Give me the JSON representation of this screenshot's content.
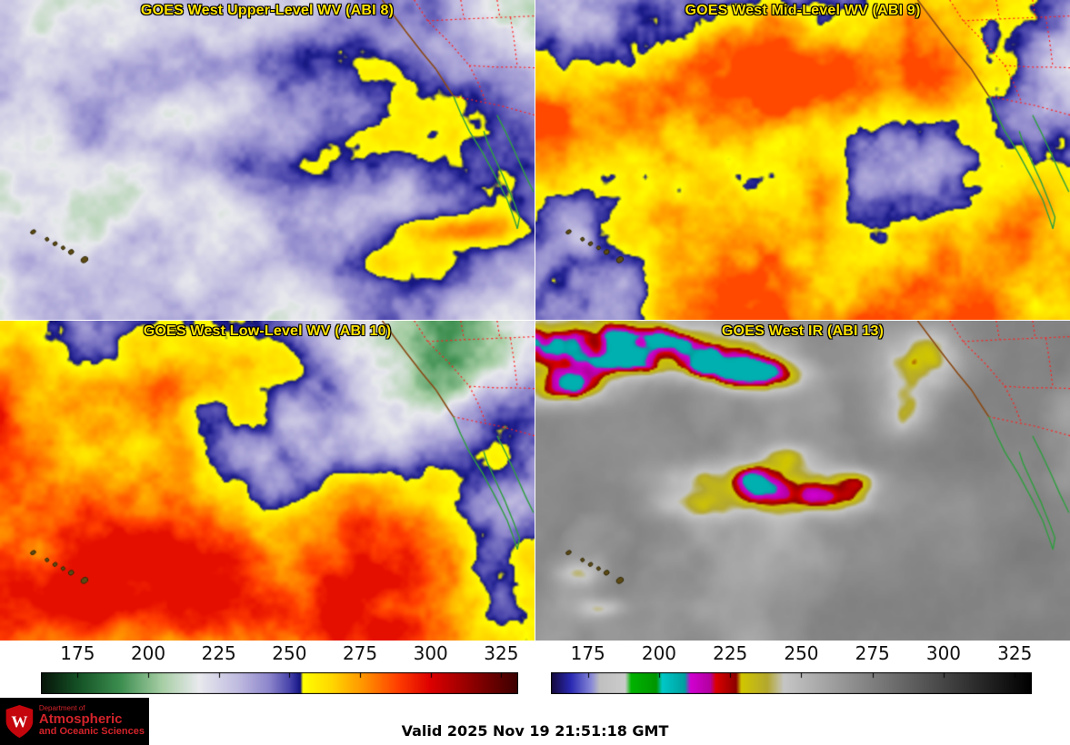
{
  "colors": {
    "panel_title": "#ffe400",
    "background": "#ffffff",
    "map_state_lines": "#ff2020",
    "map_coast_us": "#8a4a16",
    "map_coast_mexico": "#2f9e3f",
    "logo_bg": "#000000",
    "logo_red": "#d2232a",
    "tick_label": "#111111"
  },
  "panels": [
    {
      "id": "abi8",
      "title": "GOES West Upper-Level WV (ABI 8)"
    },
    {
      "id": "abi9",
      "title": "GOES West Mid-Level WV (ABI 9)"
    },
    {
      "id": "abi10",
      "title": "GOES West Low-Level WV (ABI 10)"
    },
    {
      "id": "abi13",
      "title": "GOES West IR (ABI 13)"
    }
  ],
  "colorbars": [
    {
      "id": "wv",
      "ticks": [
        175,
        200,
        225,
        250,
        275,
        300,
        325
      ],
      "range": [
        162,
        331
      ],
      "palette": [
        {
          "t": 0.0,
          "c": "#071409"
        },
        {
          "t": 0.077,
          "c": "#155226"
        },
        {
          "t": 0.166,
          "c": "#3d8f50"
        },
        {
          "t": 0.254,
          "c": "#a8cfa6"
        },
        {
          "t": 0.331,
          "c": "#e9eaee"
        },
        {
          "t": 0.414,
          "c": "#bfbbe0"
        },
        {
          "t": 0.479,
          "c": "#8d86cc"
        },
        {
          "t": 0.521,
          "c": "#4844ab"
        },
        {
          "t": 0.538,
          "c": "#20208f"
        },
        {
          "t": 0.544,
          "c": "#15157a"
        },
        {
          "t": 0.549,
          "c": "#ffff00"
        },
        {
          "t": 0.609,
          "c": "#ffd800"
        },
        {
          "t": 0.68,
          "c": "#ff9000"
        },
        {
          "t": 0.751,
          "c": "#ff3c00"
        },
        {
          "t": 0.817,
          "c": "#dd0000"
        },
        {
          "t": 0.893,
          "c": "#990000"
        },
        {
          "t": 1.0,
          "c": "#3c0000"
        }
      ]
    },
    {
      "id": "ir",
      "ticks": [
        175,
        200,
        225,
        250,
        275,
        300,
        325
      ],
      "range": [
        162,
        331
      ],
      "palette": [
        {
          "t": 0.0,
          "c": "#140a3c"
        },
        {
          "t": 0.041,
          "c": "#2a2ab4"
        },
        {
          "t": 0.083,
          "c": "#8888d8"
        },
        {
          "t": 0.101,
          "c": "#c0c0c0"
        },
        {
          "t": 0.154,
          "c": "#cccccc"
        },
        {
          "t": 0.166,
          "c": "#00b400"
        },
        {
          "t": 0.219,
          "c": "#009600"
        },
        {
          "t": 0.231,
          "c": "#00c8c8"
        },
        {
          "t": 0.278,
          "c": "#00a0a0"
        },
        {
          "t": 0.29,
          "c": "#d200d2"
        },
        {
          "t": 0.331,
          "c": "#b400a0"
        },
        {
          "t": 0.343,
          "c": "#dc0000"
        },
        {
          "t": 0.385,
          "c": "#8c0000"
        },
        {
          "t": 0.396,
          "c": "#d2c800"
        },
        {
          "t": 0.45,
          "c": "#b4a830"
        },
        {
          "t": 0.485,
          "c": "#c6c6c6"
        },
        {
          "t": 1.0,
          "c": "#000000"
        }
      ]
    }
  ],
  "logo": {
    "line1": "Department of",
    "line2": "Atmospheric",
    "line3": "and Oceanic Sciences",
    "mark": "W"
  },
  "footer": {
    "valid_time": "Valid 2025 Nov 19 21:51:18 GMT"
  }
}
